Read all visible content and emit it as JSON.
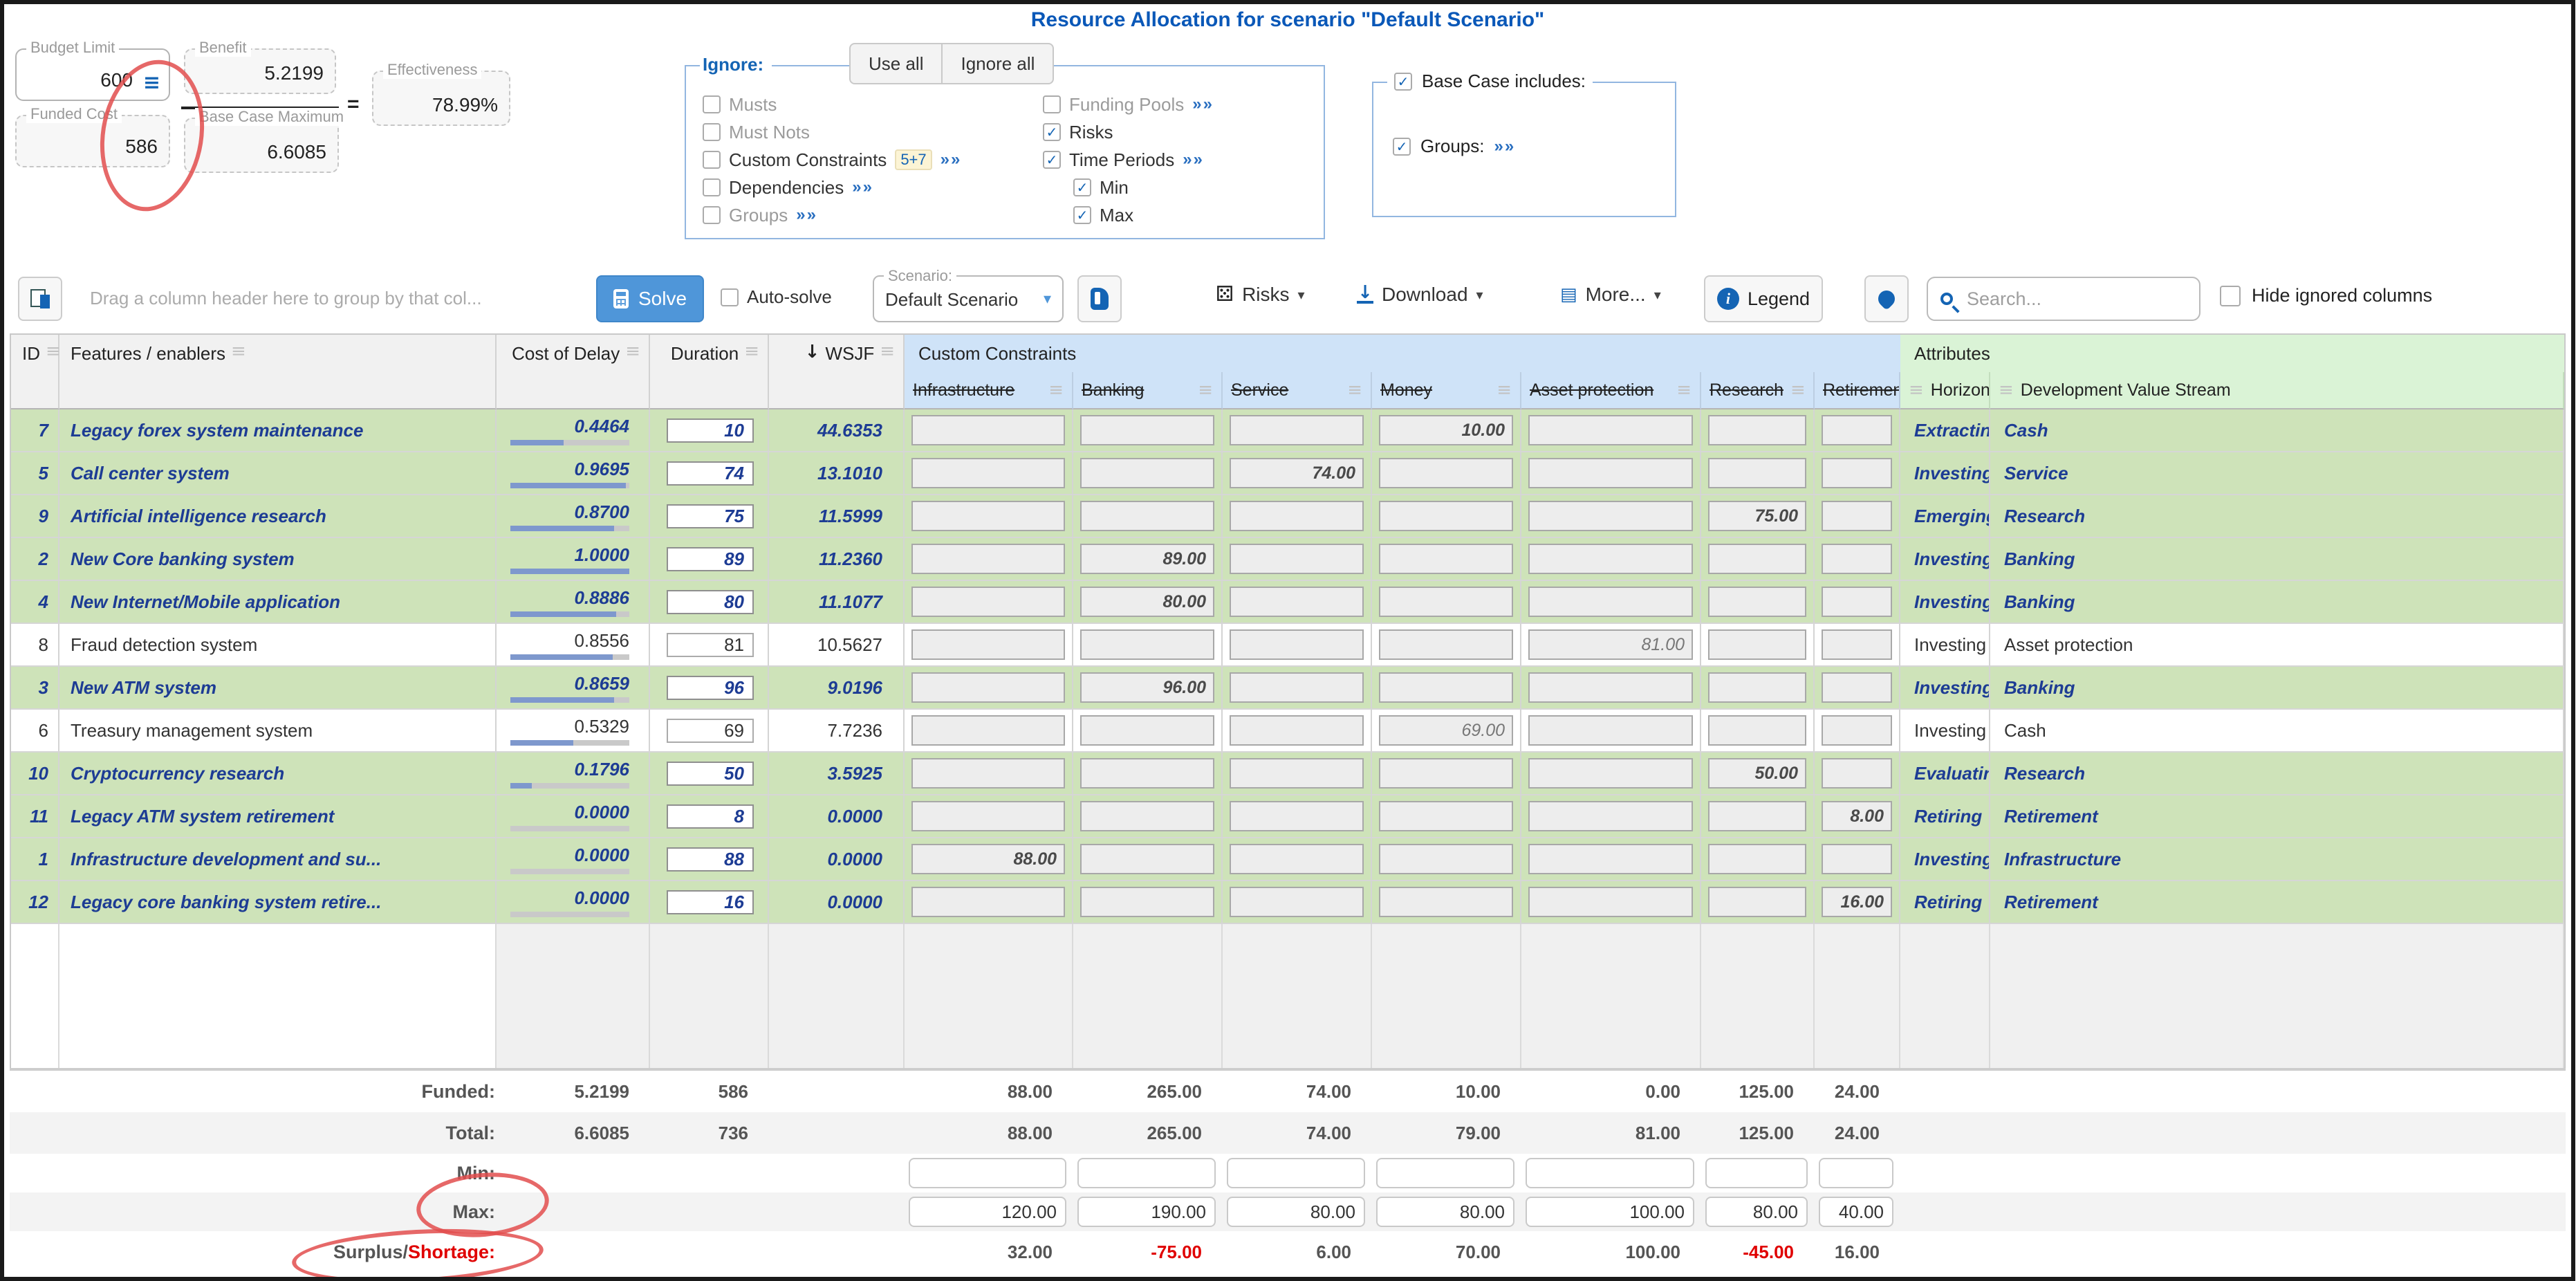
{
  "title": "Resource Allocation for scenario \"Default Scenario\"",
  "summary": {
    "budget_limit": {
      "label": "Budget Limit",
      "value": "600"
    },
    "benefit": {
      "label": "Benefit",
      "value": "5.2199"
    },
    "base_case_maximum": {
      "label": "Base Case Maximum",
      "value": "6.6085"
    },
    "funded_cost": {
      "label": "Funded Cost",
      "value": "586"
    },
    "effectiveness": {
      "label": "Effectiveness",
      "value": "78.99%"
    },
    "equals": "="
  },
  "ignore_panel": {
    "legend": "Ignore:",
    "use_all": "Use all",
    "ignore_all": "Ignore all",
    "left_items": [
      {
        "label": "Musts",
        "checked": false,
        "muted": true
      },
      {
        "label": "Must Nots",
        "checked": false,
        "muted": true
      },
      {
        "label": "Custom Constraints",
        "checked": false,
        "muted": false,
        "badge": "5+7",
        "link": "»»"
      },
      {
        "label": "Dependencies",
        "checked": false,
        "muted": false,
        "link": "»»"
      },
      {
        "label": "Groups",
        "checked": false,
        "muted": true,
        "link": "»»"
      }
    ],
    "right_items": [
      {
        "label": "Funding Pools",
        "checked": false,
        "muted": true,
        "link": "»»"
      },
      {
        "label": "Risks",
        "checked": true,
        "muted": false
      },
      {
        "label": "Time Periods",
        "checked": true,
        "muted": false,
        "link": "»»"
      },
      {
        "label": "Min",
        "checked": true,
        "muted": false,
        "indent": true
      },
      {
        "label": "Max",
        "checked": true,
        "muted": false,
        "indent": true
      }
    ]
  },
  "base_case_panel": {
    "legend": "Base Case includes:",
    "legend_checked": true,
    "groups_label": "Groups:",
    "groups_checked": true,
    "groups_link": "»»"
  },
  "toolbar": {
    "drag_hint": "Drag a column header here to group by that col...",
    "solve": "Solve",
    "auto_solve": "Auto-solve",
    "scenario_label": "Scenario:",
    "scenario_value": "Default Scenario",
    "risks": "Risks",
    "download": "Download",
    "more": "More...",
    "legend_button": "Legend",
    "search_placeholder": "Search...",
    "hide_ignored": "Hide ignored columns"
  },
  "table": {
    "bands": {
      "custom_constraints": "Custom Constraints",
      "attributes": "Attributes"
    },
    "headers": {
      "id": "ID",
      "features": "Features / enablers",
      "cost_of_delay": "Cost of Delay",
      "duration": "Duration",
      "wsjf": "WSJF"
    },
    "constraint_columns": [
      "Infrastructure",
      "Banking",
      "Service",
      "Money",
      "Asset protection",
      "Research",
      "Retirement"
    ],
    "attribute_columns": [
      "Horizon",
      "Development Value Stream"
    ],
    "rows": [
      {
        "id": "7",
        "name": "Legacy forex system maintenance",
        "cost_of_delay": "0.4464",
        "bar_pct": 45,
        "duration": "10",
        "wsjf": "44.6353",
        "funded": true,
        "constraints": [
          "",
          "",
          "",
          "10.00",
          "",
          "",
          ""
        ],
        "horizon": "Extracting",
        "value_stream": "Cash"
      },
      {
        "id": "5",
        "name": "Call center system",
        "cost_of_delay": "0.9695",
        "bar_pct": 97,
        "duration": "74",
        "wsjf": "13.1010",
        "funded": true,
        "constraints": [
          "",
          "",
          "74.00",
          "",
          "",
          "",
          ""
        ],
        "horizon": "Investing",
        "value_stream": "Service"
      },
      {
        "id": "9",
        "name": "Artificial intelligence research",
        "cost_of_delay": "0.8700",
        "bar_pct": 87,
        "duration": "75",
        "wsjf": "11.5999",
        "funded": true,
        "constraints": [
          "",
          "",
          "",
          "",
          "",
          "75.00",
          ""
        ],
        "horizon": "Emerging",
        "value_stream": "Research"
      },
      {
        "id": "2",
        "name": "New Core banking system",
        "cost_of_delay": "1.0000",
        "bar_pct": 100,
        "duration": "89",
        "wsjf": "11.2360",
        "funded": true,
        "constraints": [
          "",
          "89.00",
          "",
          "",
          "",
          "",
          ""
        ],
        "horizon": "Investing",
        "value_stream": "Banking"
      },
      {
        "id": "4",
        "name": "New Internet/Mobile application",
        "cost_of_delay": "0.8886",
        "bar_pct": 89,
        "duration": "80",
        "wsjf": "11.1077",
        "funded": true,
        "constraints": [
          "",
          "80.00",
          "",
          "",
          "",
          "",
          ""
        ],
        "horizon": "Investing",
        "value_stream": "Banking"
      },
      {
        "id": "8",
        "name": "Fraud detection system",
        "cost_of_delay": "0.8556",
        "bar_pct": 86,
        "duration": "81",
        "wsjf": "10.5627",
        "funded": false,
        "constraints": [
          "",
          "",
          "",
          "",
          "81.00",
          "",
          ""
        ],
        "horizon": "Investing",
        "value_stream": "Asset protection"
      },
      {
        "id": "3",
        "name": "New ATM system",
        "cost_of_delay": "0.8659",
        "bar_pct": 87,
        "duration": "96",
        "wsjf": "9.0196",
        "funded": true,
        "constraints": [
          "",
          "96.00",
          "",
          "",
          "",
          "",
          ""
        ],
        "horizon": "Investing",
        "value_stream": "Banking"
      },
      {
        "id": "6",
        "name": "Treasury management system",
        "cost_of_delay": "0.5329",
        "bar_pct": 53,
        "duration": "69",
        "wsjf": "7.7236",
        "funded": false,
        "constraints": [
          "",
          "",
          "",
          "69.00",
          "",
          "",
          ""
        ],
        "horizon": "Investing",
        "value_stream": "Cash"
      },
      {
        "id": "10",
        "name": "Cryptocurrency research",
        "cost_of_delay": "0.1796",
        "bar_pct": 18,
        "duration": "50",
        "wsjf": "3.5925",
        "funded": true,
        "constraints": [
          "",
          "",
          "",
          "",
          "",
          "50.00",
          ""
        ],
        "horizon": "Evaluating",
        "value_stream": "Research"
      },
      {
        "id": "11",
        "name": "Legacy ATM system retirement",
        "cost_of_delay": "0.0000",
        "bar_pct": 0,
        "duration": "8",
        "wsjf": "0.0000",
        "funded": true,
        "constraints": [
          "",
          "",
          "",
          "",
          "",
          "",
          "8.00"
        ],
        "horizon": "Retiring",
        "value_stream": "Retirement"
      },
      {
        "id": "1",
        "name": "Infrastructure development and su...",
        "cost_of_delay": "0.0000",
        "bar_pct": 0,
        "duration": "88",
        "wsjf": "0.0000",
        "funded": true,
        "constraints": [
          "88.00",
          "",
          "",
          "",
          "",
          "",
          ""
        ],
        "horizon": "Investing",
        "value_stream": "Infrastructure"
      },
      {
        "id": "12",
        "name": "Legacy core banking system retire...",
        "cost_of_delay": "0.0000",
        "bar_pct": 0,
        "duration": "16",
        "wsjf": "0.0000",
        "funded": true,
        "constraints": [
          "",
          "",
          "",
          "",
          "",
          "",
          "16.00"
        ],
        "horizon": "Retiring",
        "value_stream": "Retirement"
      }
    ]
  },
  "footer": {
    "funded": {
      "label": "Funded:",
      "benefit": "5.2199",
      "cost": "586",
      "constraints": [
        "88.00",
        "265.00",
        "74.00",
        "10.00",
        "0.00",
        "125.00",
        "24.00"
      ]
    },
    "total": {
      "label": "Total:",
      "benefit": "6.6085",
      "cost": "736",
      "constraints": [
        "88.00",
        "265.00",
        "74.00",
        "79.00",
        "81.00",
        "125.00",
        "24.00"
      ]
    },
    "min": {
      "label": "Min:",
      "constraints": [
        "",
        "",
        "",
        "",
        "",
        "",
        ""
      ]
    },
    "max": {
      "label": "Max:",
      "constraints": [
        "120.00",
        "190.00",
        "80.00",
        "80.00",
        "100.00",
        "80.00",
        "40.00"
      ]
    },
    "surplus": {
      "label_surplus": "Surplus/",
      "label_shortage": "Shortage:",
      "constraints": [
        "32.00",
        "-75.00",
        "6.00",
        "70.00",
        "100.00",
        "-45.00",
        "16.00"
      ]
    }
  },
  "icons": {
    "hamburger": "≡",
    "check": "✓",
    "caret": "▾",
    "sort_desc": "↓",
    "link": "»»",
    "dice": "⚄",
    "more": "▤",
    "funnel": "▼",
    "download_arrow": "↓",
    "info": "i"
  }
}
